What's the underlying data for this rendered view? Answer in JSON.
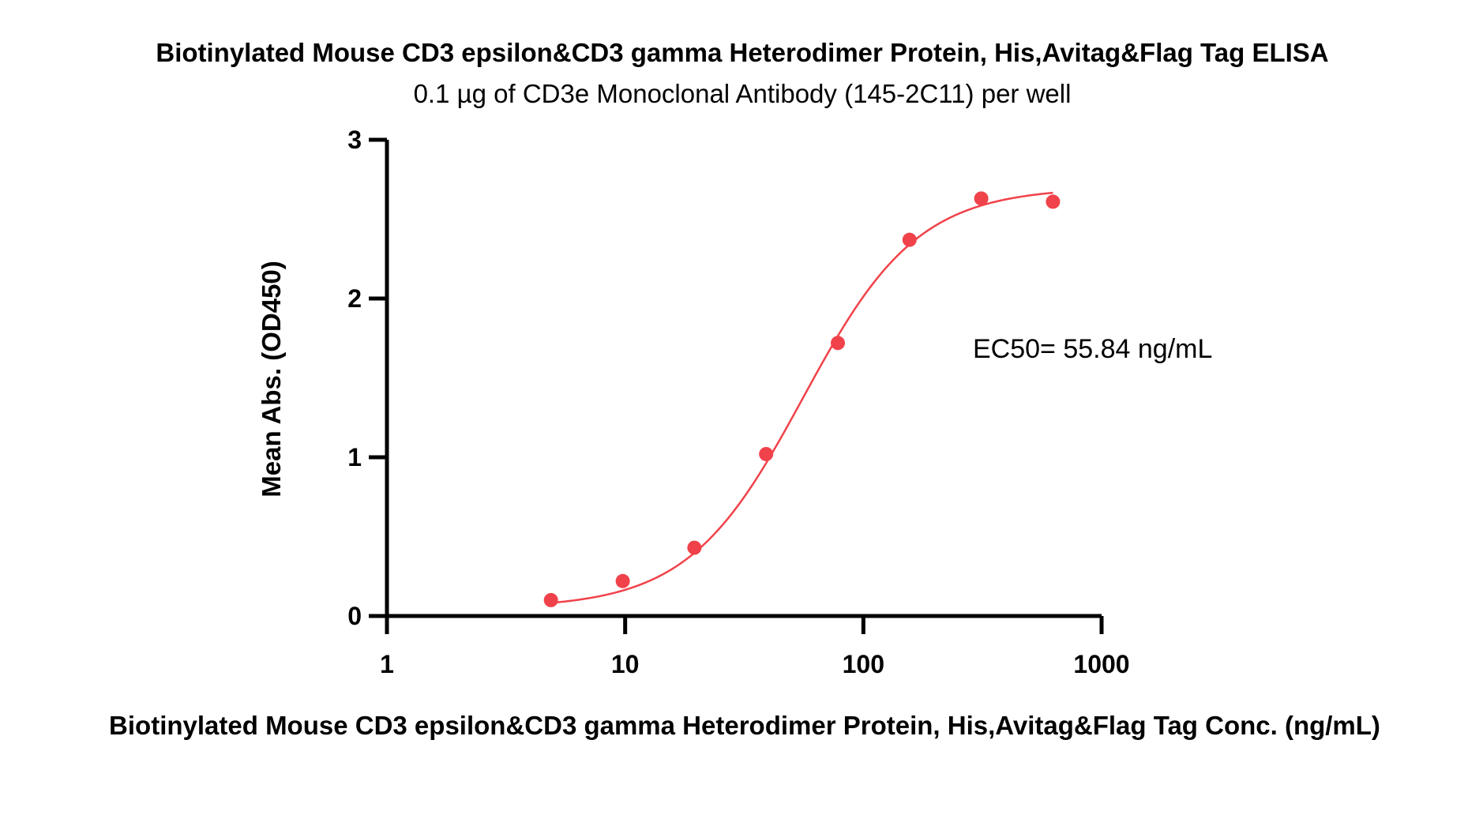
{
  "chart_data": {
    "type": "scatter",
    "title": "Biotinylated Mouse CD3 epsilon&CD3 gamma Heterodimer Protein, His,Avitag&Flag Tag ELISA",
    "subtitle": "0.1 µg of CD3e Monoclonal Antibody (145-2C11) per well",
    "xlabel": "Biotinylated Mouse CD3 epsilon&CD3 gamma Heterodimer Protein, His,Avitag&Flag Tag Conc. (ng/mL)",
    "ylabel": "Mean Abs. (OD450)",
    "x_scale": "log",
    "xlim": [
      1,
      1000
    ],
    "ylim": [
      0,
      3
    ],
    "x_ticks": [
      "1",
      "10",
      "100",
      "1000"
    ],
    "y_ticks": [
      "0",
      "1",
      "2",
      "3"
    ],
    "grid": false,
    "series": [
      {
        "x": [
          4.88,
          9.77,
          19.53,
          39.06,
          78.13,
          156.25,
          312.5,
          625
        ],
        "y": [
          0.1,
          0.22,
          0.43,
          1.02,
          1.72,
          2.37,
          2.63,
          2.61
        ],
        "fit": "4PL sigmoid"
      }
    ],
    "fit_params": {
      "bottom": 0.05,
      "top": 2.7,
      "ec50": 55.84,
      "hill": 1.8
    },
    "annotations": [
      "EC50= 55.84 ng/mL"
    ],
    "color": "#f0424a"
  }
}
